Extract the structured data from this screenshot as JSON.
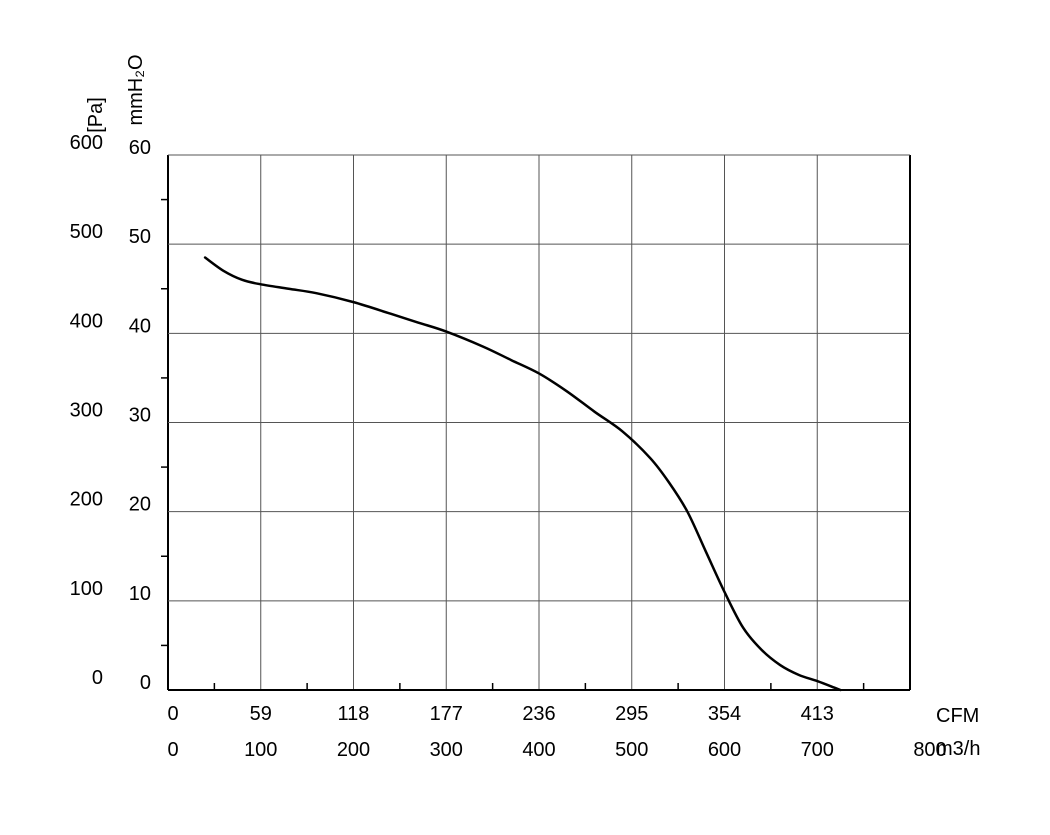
{
  "chart_data": {
    "type": "line",
    "xlabel": "CFM",
    "xlabel_secondary": "m3/h",
    "ylabel": "[Pa]",
    "ylabel_secondary": "mmH₂O",
    "xlim": [
      0,
      800
    ],
    "ylim": [
      0,
      600
    ],
    "grid": true,
    "x_ticks_m3h": [
      "0",
      "100",
      "200",
      "300",
      "400",
      "500",
      "600",
      "700",
      "800"
    ],
    "x_ticks_cfm": [
      "0",
      "59",
      "118",
      "177",
      "236",
      "295",
      "354",
      "413"
    ],
    "y_ticks_pa": [
      "0",
      "100",
      "200",
      "300",
      "400",
      "500",
      "600"
    ],
    "y_ticks_mmh2o": [
      "0",
      "10",
      "20",
      "30",
      "40",
      "50",
      "60"
    ],
    "series": [
      {
        "x": [
          40,
          60,
          80,
          100,
          130,
          160,
          200,
          240,
          270,
          300,
          340,
          370,
          400,
          430,
          460,
          490,
          520,
          540,
          560,
          580,
          600,
          620,
          640,
          660,
          680,
          700,
          720,
          725
        ],
        "y": [
          485,
          470,
          460,
          455,
          450,
          445,
          435,
          422,
          412,
          402,
          385,
          370,
          355,
          335,
          312,
          290,
          260,
          233,
          200,
          155,
          110,
          70,
          45,
          28,
          17,
          10,
          2,
          0
        ]
      }
    ]
  }
}
